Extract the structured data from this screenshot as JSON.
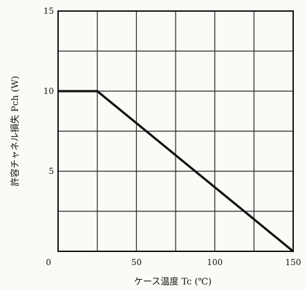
{
  "chart_data": {
    "type": "line",
    "title": "",
    "xlabel": "ケース温度 Tc (℃)",
    "ylabel": "許容チャネル損失 Pch (W)",
    "xlim": [
      0,
      150
    ],
    "ylim": [
      0,
      15
    ],
    "x_ticks": [
      "0",
      "50",
      "100",
      "150"
    ],
    "y_ticks": [
      "0",
      "5",
      "10",
      "15"
    ],
    "grid": true,
    "series": [
      {
        "x": [
          0,
          25,
          150
        ],
        "y": [
          10,
          10,
          0
        ]
      }
    ],
    "colors": {
      "line": "#111111",
      "grid": "#222222",
      "background": "#fbfaf7"
    }
  }
}
